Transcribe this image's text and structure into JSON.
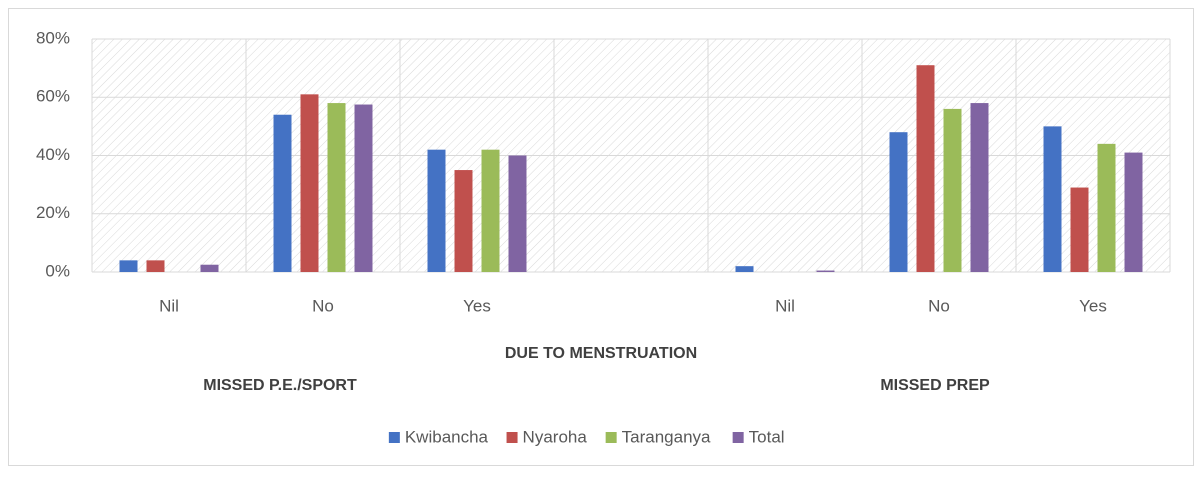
{
  "chart_data": {
    "type": "bar",
    "categories": [
      "Nil",
      "No",
      "Yes",
      null,
      "Nil",
      "No",
      "Yes"
    ],
    "series": [
      {
        "name": "Kwibancha",
        "color": "#4472c4",
        "values": [
          4,
          54,
          42,
          null,
          2,
          48,
          50
        ]
      },
      {
        "name": "Nyaroha",
        "color": "#c0504d",
        "values": [
          4,
          61,
          35,
          null,
          0,
          71,
          29
        ]
      },
      {
        "name": "Taranganya",
        "color": "#9bbb59",
        "values": [
          0,
          58,
          42,
          null,
          0,
          56,
          44
        ]
      },
      {
        "name": "Total",
        "color": "#8064a2",
        "values": [
          2.5,
          57.5,
          40,
          null,
          0.5,
          58,
          41
        ]
      }
    ],
    "annotations": [
      "DUE TO MENSTRUATION",
      "MISSED P.E./SPORT",
      "MISSED PREP"
    ],
    "ylim": [
      0,
      80
    ],
    "yticks": [
      {
        "value": 0,
        "label": "0%"
      },
      {
        "value": 20,
        "label": "20%"
      },
      {
        "value": 40,
        "label": "40%"
      },
      {
        "value": 60,
        "label": "60%"
      },
      {
        "value": 80,
        "label": "80%"
      }
    ],
    "grid": true,
    "legend": "bottom"
  }
}
